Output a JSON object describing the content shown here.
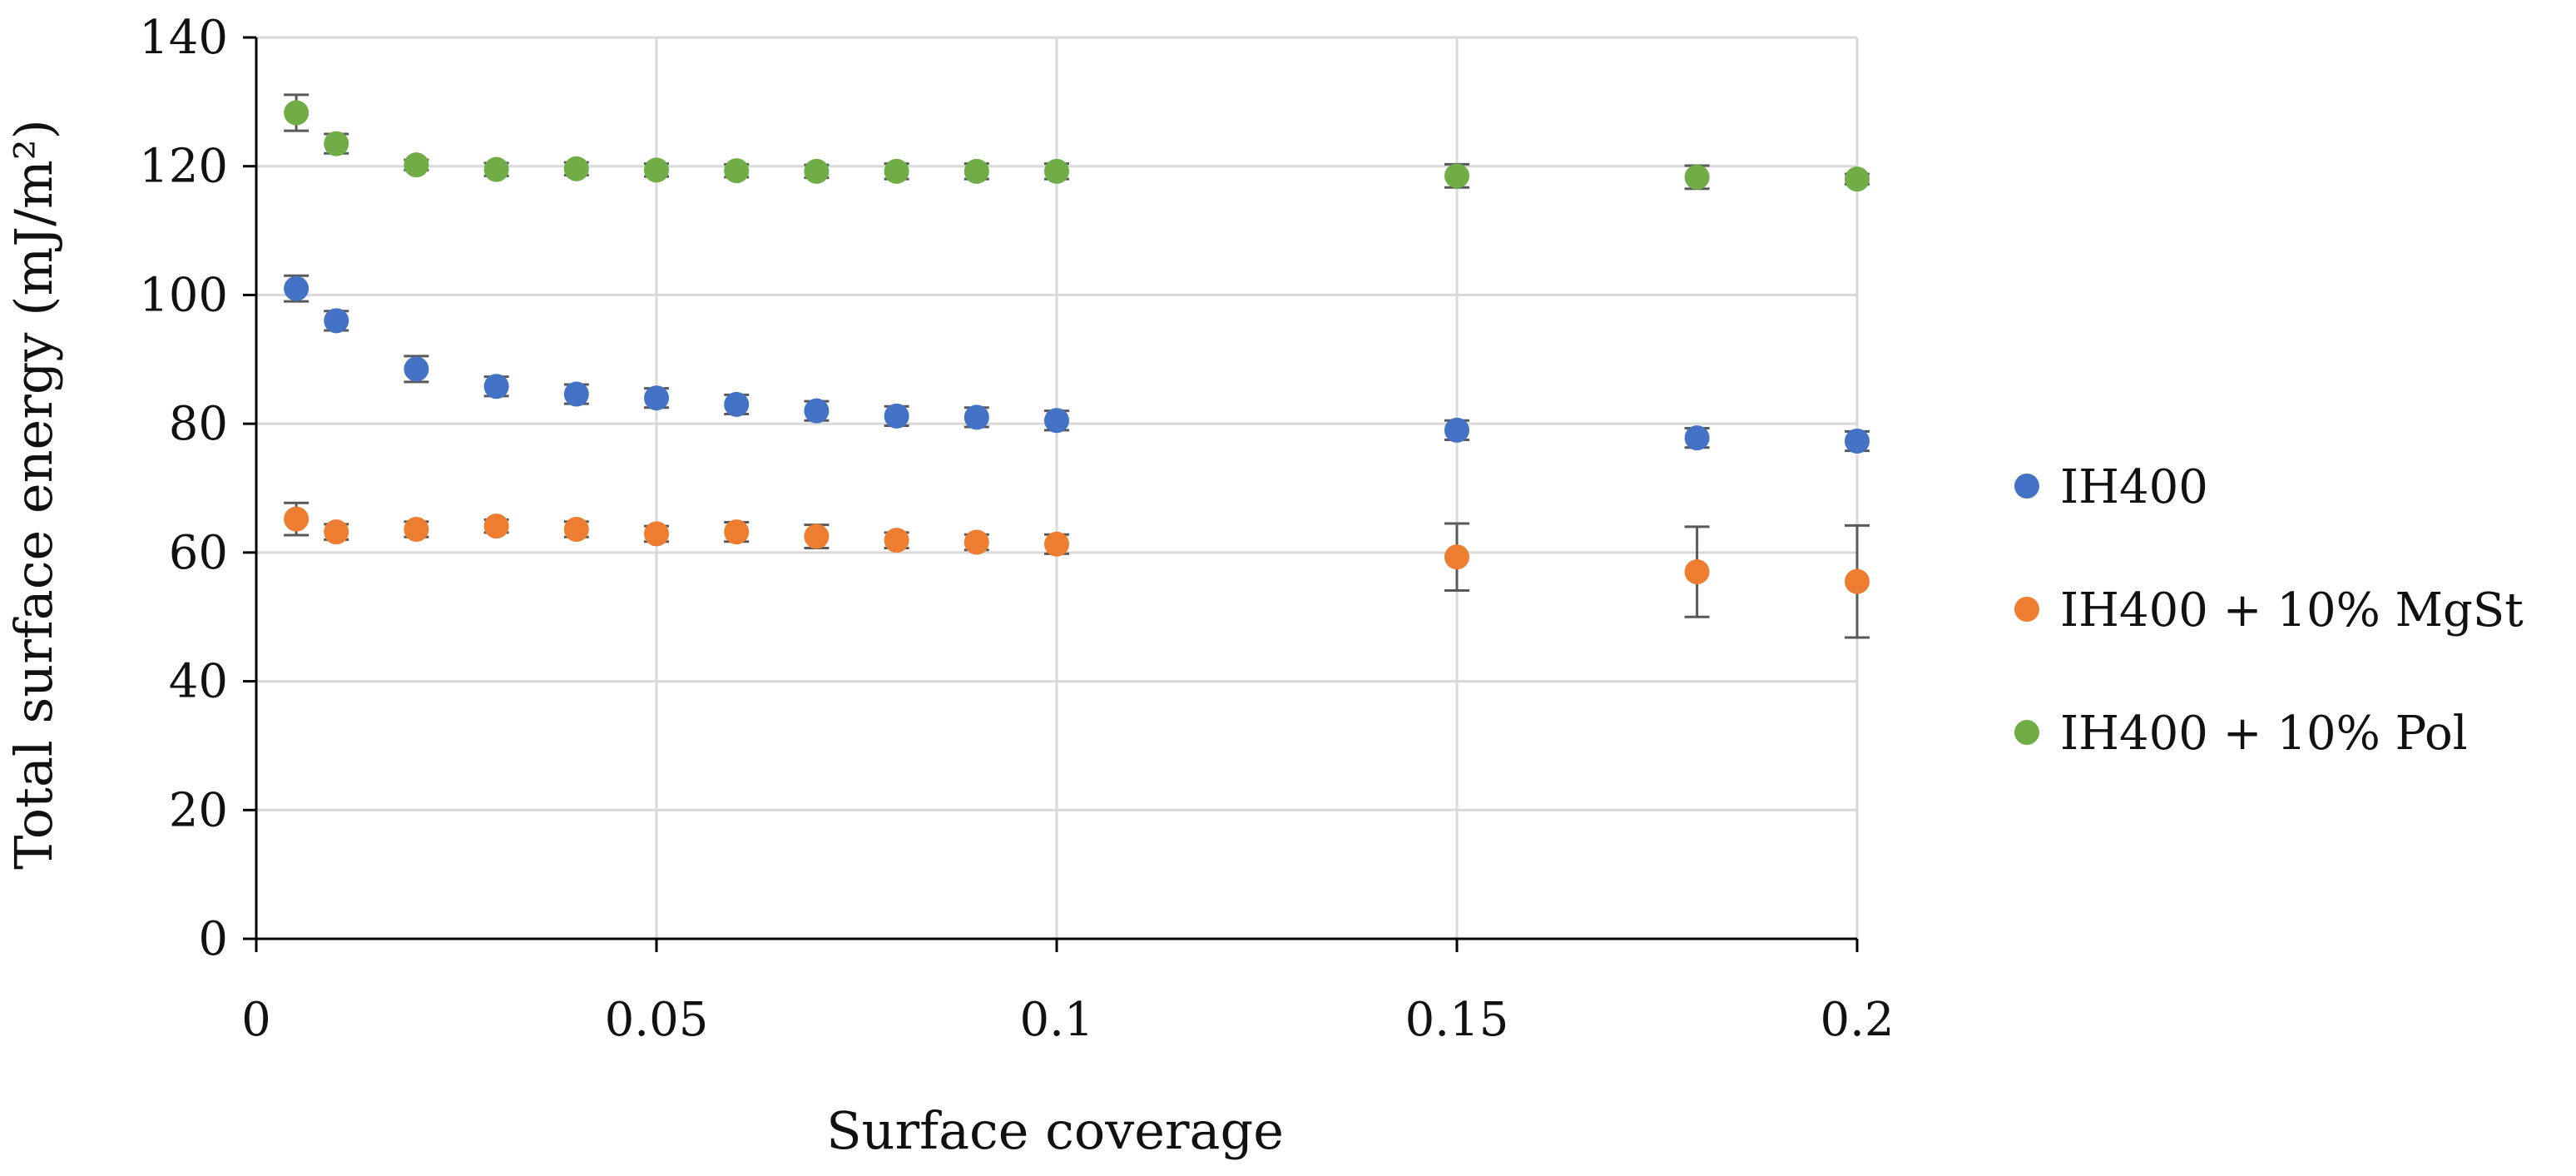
{
  "chart_data": {
    "type": "scatter",
    "title": "",
    "xlabel": "Surface coverage",
    "ylabel": "Total surface energy (mJ/m²)",
    "xlim": [
      0,
      0.2
    ],
    "ylim": [
      0,
      140
    ],
    "xticks": [
      0,
      0.05,
      0.1,
      0.15,
      0.2
    ],
    "xtick_labels": [
      "0",
      "0.05",
      "0.1",
      "0.15",
      "0.2"
    ],
    "yticks": [
      0,
      20,
      40,
      60,
      80,
      100,
      120,
      140
    ],
    "ytick_labels": [
      "0",
      "20",
      "40",
      "60",
      "80",
      "100",
      "120",
      "140"
    ],
    "grid": true,
    "error_bars": true,
    "legend_position": "right",
    "series": [
      {
        "name": "IH400",
        "color": "#4472C4",
        "x": [
          0.005,
          0.01,
          0.02,
          0.03,
          0.04,
          0.05,
          0.06,
          0.07,
          0.08,
          0.09,
          0.1,
          0.15,
          0.18,
          0.2
        ],
        "y": [
          101,
          96,
          88.5,
          85.8,
          84.6,
          84,
          83,
          82,
          81.2,
          81,
          80.5,
          79,
          77.8,
          77.3
        ],
        "err": [
          2,
          1.5,
          2,
          1.5,
          1.5,
          1.5,
          1.5,
          1.5,
          1.5,
          1.5,
          1.5,
          1.5,
          1.5,
          1.5
        ]
      },
      {
        "name": "IH400 + 10% MgSt",
        "color": "#ED7D31",
        "x": [
          0.005,
          0.01,
          0.02,
          0.03,
          0.04,
          0.05,
          0.06,
          0.07,
          0.08,
          0.09,
          0.1,
          0.15,
          0.18,
          0.2
        ],
        "y": [
          65.2,
          63.2,
          63.6,
          64.1,
          63.6,
          62.9,
          63.2,
          62.5,
          61.9,
          61.6,
          61.3,
          59.3,
          57,
          55.5
        ],
        "err": [
          2.5,
          1.2,
          1.2,
          1,
          1.2,
          1.2,
          1.5,
          1.8,
          1.2,
          1.2,
          1.5,
          5.2,
          7,
          8.7
        ]
      },
      {
        "name": "IH400 + 10% Pol",
        "color": "#70AD47",
        "x": [
          0.005,
          0.01,
          0.02,
          0.03,
          0.04,
          0.05,
          0.06,
          0.07,
          0.08,
          0.09,
          0.1,
          0.15,
          0.18,
          0.2
        ],
        "y": [
          128.3,
          123.5,
          120.2,
          119.5,
          119.6,
          119.4,
          119.3,
          119.2,
          119.2,
          119.2,
          119.2,
          118.5,
          118.3,
          118
        ],
        "err": [
          2.8,
          1.5,
          0.8,
          1,
          1,
          1,
          1,
          1,
          1.2,
          1.2,
          1.2,
          1.8,
          1.8,
          0.8
        ]
      }
    ]
  }
}
